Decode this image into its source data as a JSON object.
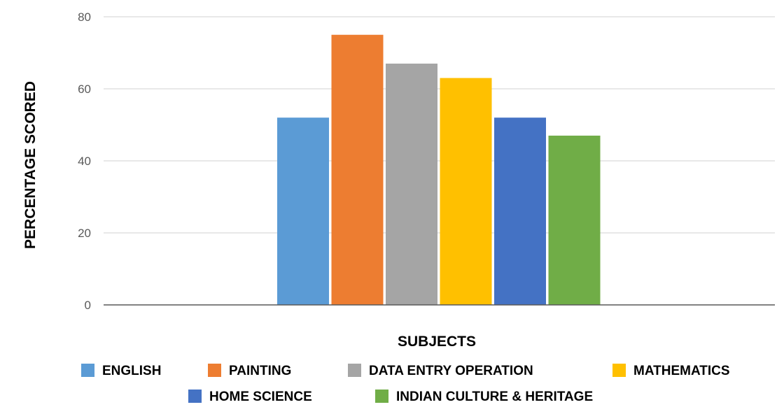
{
  "chart_data": {
    "type": "bar",
    "title": "",
    "xlabel": "SUBJECTS",
    "ylabel": "PERCENTAGE SCORED",
    "ylim": [
      0,
      80
    ],
    "yticks": [
      0,
      20,
      40,
      60,
      80
    ],
    "grid": true,
    "legend_position": "bottom",
    "categories": [
      ""
    ],
    "series": [
      {
        "name": "ENGLISH",
        "values": [
          52
        ],
        "color": "#5B9BD5"
      },
      {
        "name": "PAINTING",
        "values": [
          75
        ],
        "color": "#ED7D31"
      },
      {
        "name": "DATA ENTRY OPERATION",
        "values": [
          67
        ],
        "color": "#A5A5A5"
      },
      {
        "name": "MATHEMATICS",
        "values": [
          63
        ],
        "color": "#FFC000"
      },
      {
        "name": "HOME SCIENCE",
        "values": [
          52
        ],
        "color": "#4472C4"
      },
      {
        "name": "INDIAN CULTURE & HERITAGE",
        "values": [
          47
        ],
        "color": "#70AD47"
      }
    ]
  }
}
